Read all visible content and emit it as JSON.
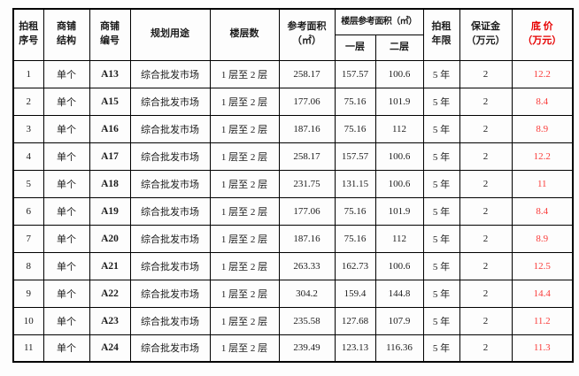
{
  "table": {
    "accent_red_header": "#e60000",
    "accent_red_value": "#fa3c3a",
    "border_color": "#000000",
    "headers": {
      "seq": "拍租\n序号",
      "structure": "商铺\n结构",
      "shop_no": "商铺\n编号",
      "usage": "规划用途",
      "floors": "楼层数",
      "ref_area": "参考面积\n（㎡）",
      "floor_ref_area": "楼层参考面积（㎡）",
      "floor1": "一层",
      "floor2": "二层",
      "term": "拍租\n年限",
      "deposit": "保证金\n（万元）",
      "base_price": "底 价\n（万元）"
    },
    "rows": [
      [
        "1",
        "单个",
        "A13",
        "综合批发市场",
        "1 层至 2 层",
        "258.17",
        "157.57",
        "100.6",
        "5 年",
        "2",
        "12.2"
      ],
      [
        "2",
        "单个",
        "A15",
        "综合批发市场",
        "1 层至 2 层",
        "177.06",
        "75.16",
        "101.9",
        "5 年",
        "2",
        "8.4"
      ],
      [
        "3",
        "单个",
        "A16",
        "综合批发市场",
        "1 层至 2 层",
        "187.16",
        "75.16",
        "112",
        "5 年",
        "2",
        "8.9"
      ],
      [
        "4",
        "单个",
        "A17",
        "综合批发市场",
        "1 层至 2 层",
        "258.17",
        "157.57",
        "100.6",
        "5 年",
        "2",
        "12.2"
      ],
      [
        "5",
        "单个",
        "A18",
        "综合批发市场",
        "1 层至 2 层",
        "231.75",
        "131.15",
        "100.6",
        "5 年",
        "2",
        "11"
      ],
      [
        "6",
        "单个",
        "A19",
        "综合批发市场",
        "1 层至 2 层",
        "177.06",
        "75.16",
        "101.9",
        "5 年",
        "2",
        "8.4"
      ],
      [
        "7",
        "单个",
        "A20",
        "综合批发市场",
        "1 层至 2 层",
        "187.16",
        "75.16",
        "112",
        "5 年",
        "2",
        "8.9"
      ],
      [
        "8",
        "单个",
        "A21",
        "综合批发市场",
        "1 层至 2 层",
        "263.33",
        "162.73",
        "100.6",
        "5 年",
        "2",
        "12.5"
      ],
      [
        "9",
        "单个",
        "A22",
        "综合批发市场",
        "1 层至 2 层",
        "304.2",
        "159.4",
        "144.8",
        "5 年",
        "2",
        "14.4"
      ],
      [
        "10",
        "单个",
        "A23",
        "综合批发市场",
        "1 层至 2 层",
        "235.58",
        "127.68",
        "107.9",
        "5 年",
        "2",
        "11.2"
      ],
      [
        "11",
        "单个",
        "A24",
        "综合批发市场",
        "1 层至 2 层",
        "239.49",
        "123.13",
        "116.36",
        "5 年",
        "2",
        "11.3"
      ]
    ]
  }
}
